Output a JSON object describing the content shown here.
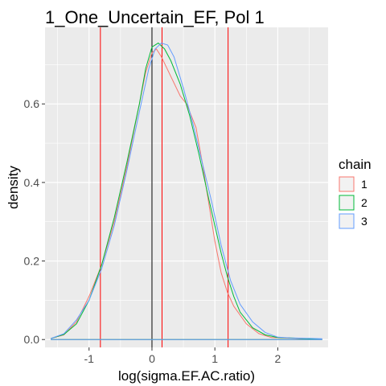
{
  "chart_data": {
    "type": "line",
    "title": "1_One_Uncertain_EF, Pol 1",
    "xlabel": "log(sigma.EF.AC.ratio)",
    "ylabel": "density",
    "xlim": [
      -1.7,
      2.8
    ],
    "ylim": [
      -0.02,
      0.795
    ],
    "x_ticks": [
      -1,
      0,
      1,
      2
    ],
    "x_tick_labels": [
      "-1",
      "0",
      "1",
      "2"
    ],
    "y_ticks": [
      0.0,
      0.2,
      0.4,
      0.6
    ],
    "y_tick_labels": [
      "0.0",
      "0.2",
      "0.4",
      "0.6"
    ],
    "grid": true,
    "legend_position": "right",
    "legend_title": "chain",
    "reference_lines": {
      "black_x": 0.0,
      "red_x": [
        -0.82,
        0.16,
        1.21
      ]
    },
    "series": [
      {
        "name": "1",
        "color": "#F8766D",
        "points": [
          [
            -1.6,
            0.003
          ],
          [
            -1.4,
            0.012
          ],
          [
            -1.2,
            0.045
          ],
          [
            -1.0,
            0.11
          ],
          [
            -0.8,
            0.19
          ],
          [
            -0.6,
            0.3
          ],
          [
            -0.4,
            0.44
          ],
          [
            -0.2,
            0.6
          ],
          [
            -0.1,
            0.68
          ],
          [
            0.0,
            0.73
          ],
          [
            0.07,
            0.74
          ],
          [
            0.15,
            0.72
          ],
          [
            0.3,
            0.67
          ],
          [
            0.45,
            0.62
          ],
          [
            0.55,
            0.6
          ],
          [
            0.7,
            0.54
          ],
          [
            0.8,
            0.45
          ],
          [
            0.9,
            0.35
          ],
          [
            1.0,
            0.25
          ],
          [
            1.1,
            0.17
          ],
          [
            1.2,
            0.12
          ],
          [
            1.3,
            0.085
          ],
          [
            1.5,
            0.04
          ],
          [
            1.7,
            0.015
          ],
          [
            1.9,
            0.005
          ],
          [
            2.1,
            0.004
          ],
          [
            2.3,
            0.003
          ],
          [
            2.5,
            0.002
          ],
          [
            2.7,
            0.001
          ]
        ]
      },
      {
        "name": "2",
        "color": "#00BA38",
        "points": [
          [
            -1.6,
            0.003
          ],
          [
            -1.4,
            0.013
          ],
          [
            -1.2,
            0.04
          ],
          [
            -1.0,
            0.1
          ],
          [
            -0.8,
            0.19
          ],
          [
            -0.6,
            0.31
          ],
          [
            -0.4,
            0.45
          ],
          [
            -0.2,
            0.6
          ],
          [
            -0.1,
            0.69
          ],
          [
            0.0,
            0.745
          ],
          [
            0.1,
            0.755
          ],
          [
            0.2,
            0.74
          ],
          [
            0.3,
            0.71
          ],
          [
            0.45,
            0.65
          ],
          [
            0.6,
            0.57
          ],
          [
            0.75,
            0.47
          ],
          [
            0.9,
            0.36
          ],
          [
            1.0,
            0.29
          ],
          [
            1.1,
            0.22
          ],
          [
            1.2,
            0.16
          ],
          [
            1.3,
            0.11
          ],
          [
            1.4,
            0.07
          ],
          [
            1.6,
            0.03
          ],
          [
            1.8,
            0.012
          ],
          [
            2.0,
            0.005
          ],
          [
            2.2,
            0.004
          ],
          [
            2.5,
            0.002
          ],
          [
            2.7,
            0.001
          ]
        ]
      },
      {
        "name": "3",
        "color": "#619CFF",
        "points": [
          [
            -1.6,
            0.003
          ],
          [
            -1.4,
            0.015
          ],
          [
            -1.2,
            0.05
          ],
          [
            -1.0,
            0.1
          ],
          [
            -0.8,
            0.18
          ],
          [
            -0.6,
            0.29
          ],
          [
            -0.4,
            0.43
          ],
          [
            -0.2,
            0.58
          ],
          [
            -0.05,
            0.69
          ],
          [
            0.05,
            0.74
          ],
          [
            0.15,
            0.755
          ],
          [
            0.25,
            0.75
          ],
          [
            0.35,
            0.72
          ],
          [
            0.5,
            0.64
          ],
          [
            0.65,
            0.55
          ],
          [
            0.8,
            0.45
          ],
          [
            0.95,
            0.35
          ],
          [
            1.1,
            0.24
          ],
          [
            1.25,
            0.15
          ],
          [
            1.4,
            0.09
          ],
          [
            1.6,
            0.045
          ],
          [
            1.8,
            0.018
          ],
          [
            2.0,
            0.006
          ],
          [
            2.2,
            0.004
          ],
          [
            2.5,
            0.003
          ],
          [
            2.7,
            0.002
          ]
        ]
      }
    ]
  }
}
